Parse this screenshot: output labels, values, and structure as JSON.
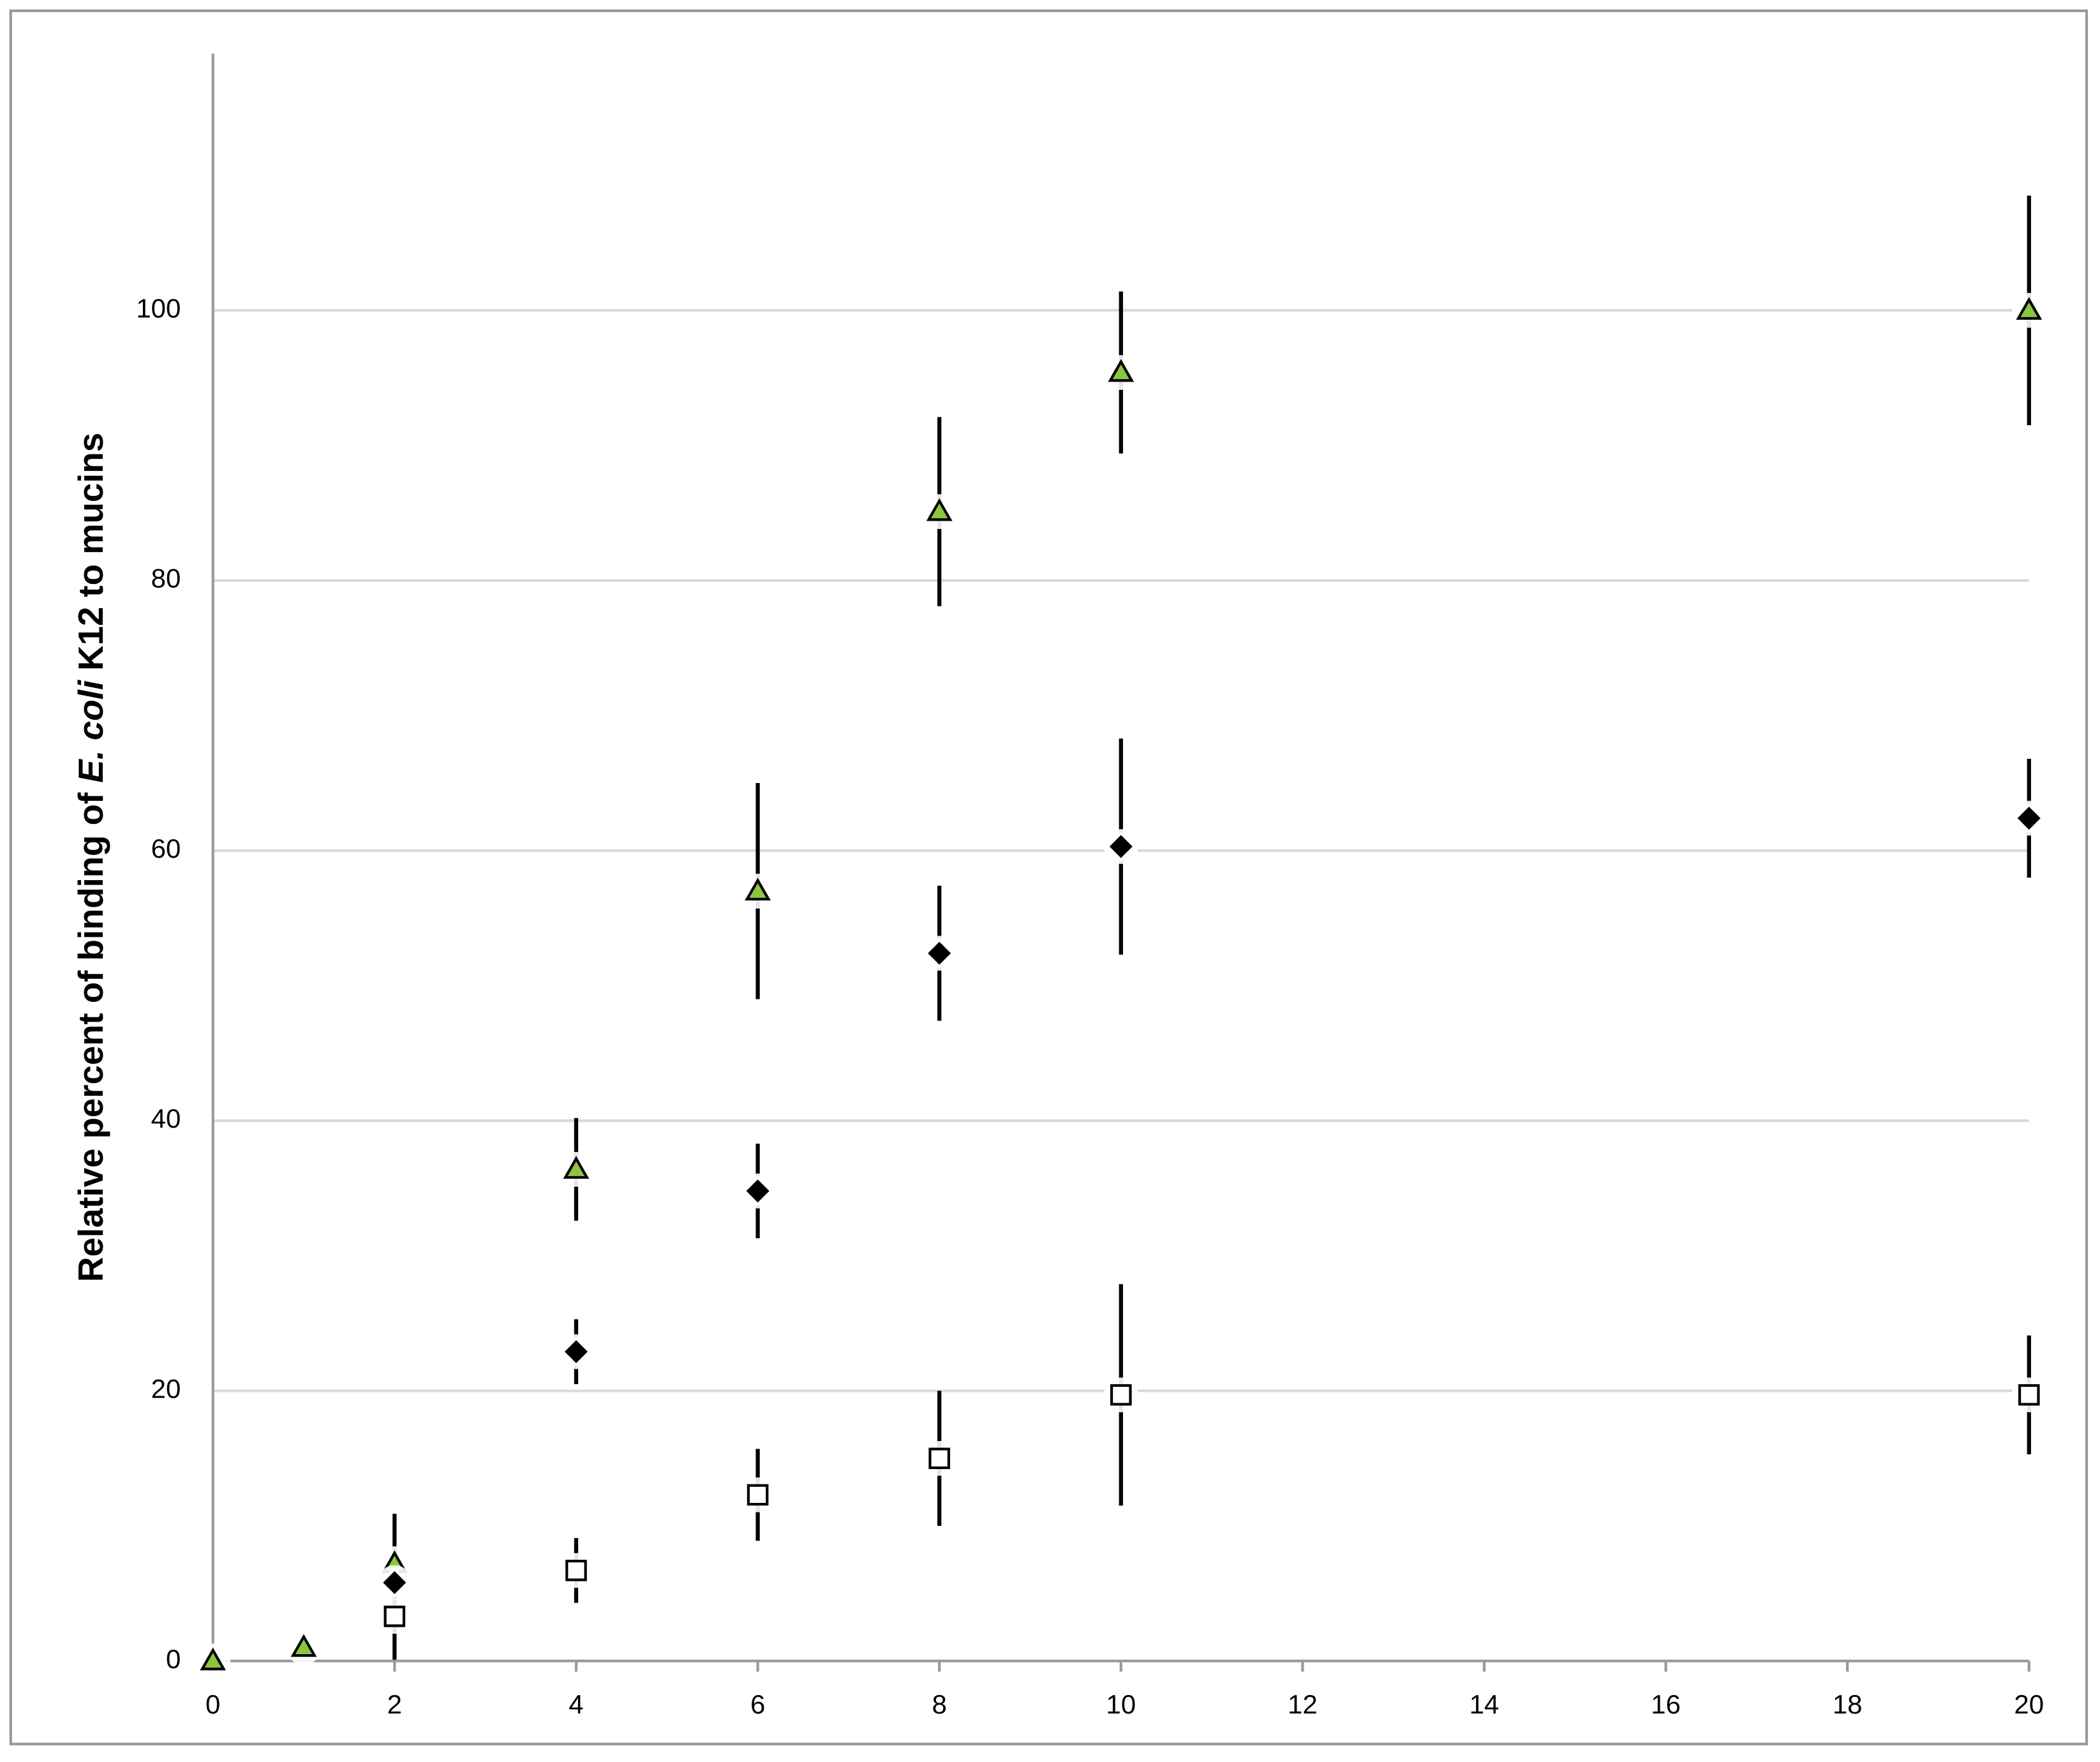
{
  "chart_data": {
    "type": "scatter",
    "y_label_parts": [
      "Relative percent of binding of ",
      "E. coli",
      " K12 to mucins"
    ],
    "xlim": [
      0,
      20
    ],
    "xticks": [
      0,
      2,
      4,
      6,
      8,
      10,
      12,
      14,
      16,
      18,
      20
    ],
    "ylim": [
      0,
      120
    ],
    "yticks": [
      0,
      20,
      40,
      60,
      80,
      100
    ],
    "grid": true,
    "series": [
      {
        "marker": "triangle",
        "color": "#8cc540",
        "x": [
          0,
          1,
          2,
          4,
          6,
          8,
          10,
          20
        ],
        "values": [
          0,
          1,
          7.2,
          36.4,
          57,
          85.1,
          95.4,
          100
        ],
        "errors": [
          0,
          0,
          3.7,
          3.8,
          8,
          7,
          6,
          8.5
        ]
      },
      {
        "marker": "diamond",
        "color": "#000000",
        "x": [
          2,
          4,
          6,
          8,
          10,
          20
        ],
        "values": [
          5.8,
          22.9,
          34.8,
          52.4,
          60.3,
          62.4
        ],
        "errors": [
          0,
          2.4,
          3.5,
          5,
          8,
          4.4
        ]
      },
      {
        "marker": "square",
        "color": "#ffffff",
        "x": [
          2,
          4,
          6,
          8,
          10,
          20
        ],
        "values": [
          3.3,
          6.7,
          12.3,
          15,
          19.7,
          19.7
        ],
        "errors": [
          3.2,
          2.4,
          3.4,
          5,
          8.2,
          4.4
        ]
      }
    ]
  }
}
